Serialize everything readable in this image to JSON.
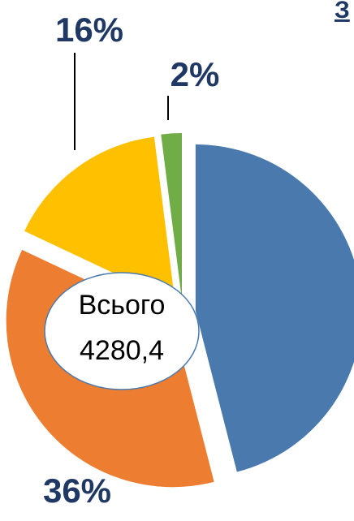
{
  "chart_data": {
    "type": "pie",
    "title": "З",
    "values": [
      46,
      36,
      16,
      2
    ],
    "value_labels": [
      null,
      "36%",
      "16%",
      "2%"
    ],
    "colors": [
      "#4a7aad",
      "#ed7d31",
      "#ffc000",
      "#70ad47"
    ],
    "annotations": [
      "Всього",
      "4280,4"
    ]
  }
}
